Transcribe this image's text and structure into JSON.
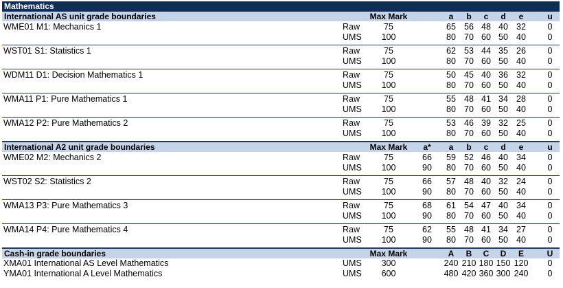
{
  "title": "Mathematics",
  "as_section": {
    "heading": "International AS unit grade boundaries",
    "max_label": "Max Mark",
    "grades": [
      "a",
      "b",
      "c",
      "d",
      "e",
      "u"
    ],
    "units": [
      {
        "name": "WME01  M1: Mechanics 1",
        "raw_max": "75",
        "raw": [
          "65",
          "56",
          "48",
          "40",
          "32",
          "0"
        ],
        "ums_max": "100",
        "ums": [
          "80",
          "70",
          "60",
          "50",
          "40",
          "0"
        ]
      },
      {
        "name": "WST01  S1: Statistics 1",
        "raw_max": "75",
        "raw": [
          "62",
          "53",
          "44",
          "35",
          "26",
          "0"
        ],
        "ums_max": "100",
        "ums": [
          "80",
          "70",
          "60",
          "50",
          "40",
          "0"
        ]
      },
      {
        "name": "WDM11  D1: Decision Mathematics 1",
        "raw_max": "75",
        "raw": [
          "50",
          "45",
          "40",
          "36",
          "32",
          "0"
        ],
        "ums_max": "100",
        "ums": [
          "80",
          "70",
          "60",
          "50",
          "40",
          "0"
        ]
      },
      {
        "name": "WMA11  P1: Pure Mathematics 1",
        "raw_max": "75",
        "raw": [
          "55",
          "48",
          "41",
          "34",
          "28",
          "0"
        ],
        "ums_max": "100",
        "ums": [
          "80",
          "70",
          "60",
          "50",
          "40",
          "0"
        ]
      },
      {
        "name": "WMA12  P2: Pure Mathematics 2",
        "raw_max": "75",
        "raw": [
          "53",
          "46",
          "39",
          "32",
          "25",
          "0"
        ],
        "ums_max": "100",
        "ums": [
          "80",
          "70",
          "60",
          "50",
          "40",
          "0"
        ]
      }
    ]
  },
  "a2_section": {
    "heading": "International A2 unit grade boundaries",
    "max_label": "Max Mark",
    "grades": [
      "a*",
      "a",
      "b",
      "c",
      "d",
      "e",
      "u"
    ],
    "units": [
      {
        "name": "WME02  M2: Mechanics 2",
        "raw_max": "75",
        "raw": [
          "66",
          "59",
          "52",
          "46",
          "40",
          "34",
          "0"
        ],
        "ums_max": "100",
        "ums": [
          "90",
          "80",
          "70",
          "60",
          "50",
          "40",
          "0"
        ]
      },
      {
        "name": "WST02  S2: Statistics 2",
        "raw_max": "75",
        "raw": [
          "66",
          "57",
          "48",
          "40",
          "32",
          "24",
          "0"
        ],
        "ums_max": "100",
        "ums": [
          "90",
          "80",
          "70",
          "60",
          "50",
          "40",
          "0"
        ]
      },
      {
        "name": "WMA13  P3: Pure Mathematics 3",
        "raw_max": "75",
        "raw": [
          "68",
          "61",
          "54",
          "47",
          "40",
          "34",
          "0"
        ],
        "ums_max": "100",
        "ums": [
          "90",
          "80",
          "70",
          "60",
          "50",
          "40",
          "0"
        ]
      },
      {
        "name": "WMA14  P4: Pure Mathematics 4",
        "raw_max": "75",
        "raw": [
          "62",
          "55",
          "48",
          "41",
          "34",
          "27",
          "0"
        ],
        "ums_max": "100",
        "ums": [
          "90",
          "80",
          "70",
          "60",
          "50",
          "40",
          "0"
        ]
      }
    ]
  },
  "cash_section": {
    "heading": "Cash-in grade boundaries",
    "max_label": "Max Mark",
    "grades": [
      "A",
      "B",
      "C",
      "D",
      "E",
      "U"
    ],
    "rows": [
      {
        "name": "XMA01   International AS Level Mathematics",
        "type": "UMS",
        "max": "300",
        "values": [
          "240",
          "210",
          "180",
          "150",
          "120",
          "0"
        ]
      },
      {
        "name": "YMA01   International A Level Mathematics",
        "type": "UMS",
        "max": "600",
        "values": [
          "480",
          "420",
          "360",
          "300",
          "240",
          "0"
        ]
      }
    ]
  },
  "labels": {
    "raw": "Raw",
    "ums": "UMS"
  }
}
